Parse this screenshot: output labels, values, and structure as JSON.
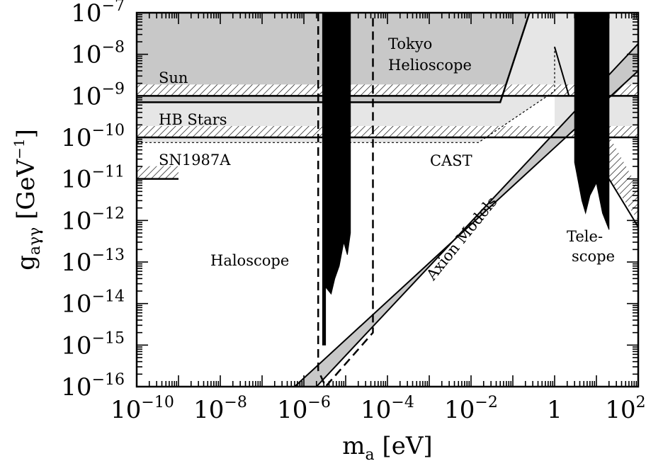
{
  "chart_data": {
    "type": "exclusion-plot",
    "xaxis": {
      "label_main": "m",
      "label_sub": "a",
      "label_unit": "[eV]",
      "scale": "log",
      "range": [
        1e-10,
        100
      ],
      "tick_labels": [
        {
          "value": 1e-10,
          "base": "10",
          "exp": "−10"
        },
        {
          "value": 1e-08,
          "base": "10",
          "exp": "−8"
        },
        {
          "value": 1e-06,
          "base": "10",
          "exp": "−6"
        },
        {
          "value": 0.0001,
          "base": "10",
          "exp": "−4"
        },
        {
          "value": 0.01,
          "base": "10",
          "exp": "−2"
        },
        {
          "value": 1,
          "base": "1",
          "exp": ""
        },
        {
          "value": 100,
          "base": "10",
          "exp": "2"
        }
      ]
    },
    "yaxis": {
      "label_main": "g",
      "label_sub": "aγγ",
      "label_unit_pre": "[GeV",
      "label_unit_exp": "−1",
      "label_unit_post": "]",
      "scale": "log",
      "range": [
        1e-16,
        1e-07
      ],
      "tick_labels": [
        {
          "value": 1e-07,
          "base": "10",
          "exp": "−7"
        },
        {
          "value": 1e-08,
          "base": "10",
          "exp": "−8"
        },
        {
          "value": 1e-09,
          "base": "10",
          "exp": "−9"
        },
        {
          "value": 1e-10,
          "base": "10",
          "exp": "−10"
        },
        {
          "value": 1e-11,
          "base": "10",
          "exp": "−11"
        },
        {
          "value": 1e-12,
          "base": "10",
          "exp": "−12"
        },
        {
          "value": 1e-13,
          "base": "10",
          "exp": "−13"
        },
        {
          "value": 1e-14,
          "base": "10",
          "exp": "−14"
        },
        {
          "value": 1e-15,
          "base": "10",
          "exp": "−15"
        },
        {
          "value": 1e-16,
          "base": "10",
          "exp": "−16"
        }
      ]
    },
    "regions": {
      "sun": {
        "label": "Sun",
        "g": 1e-09,
        "mass_range": [
          1e-10,
          100
        ]
      },
      "hb_stars": {
        "label": "HB Stars",
        "g": 1e-10,
        "mass_range": [
          1e-10,
          100
        ]
      },
      "sn1987a": {
        "label": "SN1987A",
        "g": 1e-11,
        "mass_range": [
          1e-10,
          1e-09
        ]
      },
      "tokyo_helioscope": {
        "label_line1": "Tokyo",
        "label_line2": "Helioscope",
        "boundary": [
          [
            1e-10,
            7e-10
          ],
          [
            0.05,
            7e-10
          ],
          [
            0.25,
            1e-07
          ]
        ]
      },
      "cast": {
        "label": "CAST",
        "boundary": [
          [
            1e-10,
            7.5e-11
          ],
          [
            0.015,
            7.5e-11
          ],
          [
            1.0,
            1.3e-09
          ],
          [
            1.0,
            1.7e-08
          ]
        ]
      },
      "haloscope": {
        "label": "Haloscope",
        "dashed_outline": [
          [
            2.2e-06,
            1e-07
          ],
          [
            2.2e-06,
            2.5e-16
          ],
          [
            3.3e-06,
            1e-16
          ],
          [
            4.5e-05,
            2e-15
          ],
          [
            4.5e-05,
            1e-07
          ]
        ],
        "exclusion_mass_range": [
          2.8e-06,
          1.3e-05
        ],
        "exclusion_floor": [
          [
            2.8e-06,
            1e-15
          ],
          [
            3.3e-06,
            1e-15
          ],
          [
            3.3e-06,
            2.5e-14
          ],
          [
            4.5e-06,
            1.7e-14
          ],
          [
            5.5e-06,
            4e-14
          ],
          [
            7e-06,
            8e-14
          ],
          [
            9e-06,
            3e-13
          ],
          [
            1.1e-05,
            1.5e-13
          ],
          [
            1.3e-05,
            5e-13
          ]
        ]
      },
      "axion_models": {
        "label": "Axion Models",
        "upper_line": [
          [
            2e-06,
            1e-16
          ],
          [
            100,
            1.8e-08
          ]
        ],
        "lower_line": [
          [
            6e-07,
            1e-16
          ],
          [
            100,
            4e-09
          ]
        ]
      },
      "telescope": {
        "label_line1": "Tele-",
        "label_line2": "scope",
        "mass_range": [
          3,
          20
        ],
        "floor": [
          [
            3,
            2.5e-11
          ],
          [
            4.5,
            3e-12
          ],
          [
            5.5,
            1.5e-12
          ],
          [
            7,
            4e-12
          ],
          [
            10,
            8e-12
          ],
          [
            14,
            1.5e-12
          ],
          [
            20,
            6e-13
          ]
        ]
      }
    },
    "grid": false
  }
}
